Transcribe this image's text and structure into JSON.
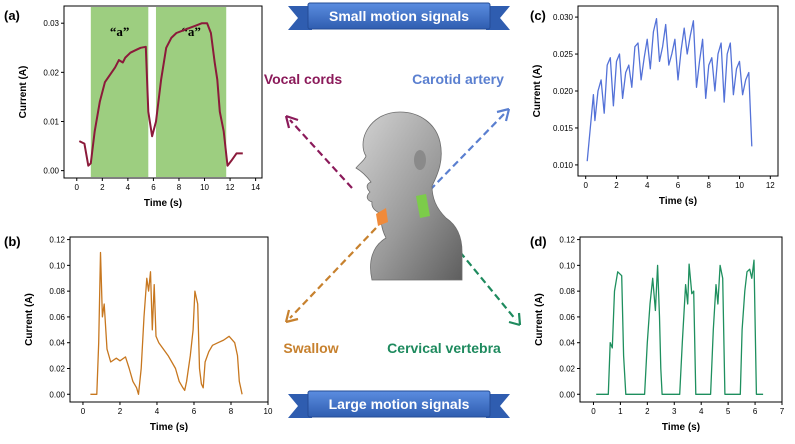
{
  "banners": {
    "top": "Small motion signals",
    "bottom": "Large motion signals",
    "color": "#3d6fc4"
  },
  "sites": [
    {
      "label": "Vocal cords",
      "color": "#8b1a5a"
    },
    {
      "label": "Carotid artery",
      "color": "#5a7fd0"
    },
    {
      "label": "Swallow",
      "color": "#c7812e"
    },
    {
      "label": "Cervical vertebra",
      "color": "#1e8a5e"
    }
  ],
  "head_icon": "human-head-side-view",
  "chart_data": [
    {
      "panel": "(a)",
      "type": "line",
      "color": "#8b1a3a",
      "xlabel": "Time (s)",
      "ylabel": "Current (A)",
      "xlim": [
        -1,
        14.5
      ],
      "ylim": [
        -0.0015,
        0.0335
      ],
      "xticks": [
        0,
        2,
        4,
        6,
        8,
        10,
        12,
        14
      ],
      "yticks": [
        0.0,
        0.01,
        0.02,
        0.03
      ],
      "ytick_labels": [
        "0.00",
        "0.01",
        "0.02",
        "0.03"
      ],
      "highlights": [
        {
          "x0": 1.1,
          "x1": 5.6,
          "label": "“a”",
          "color": "#8cc66a"
        },
        {
          "x0": 6.2,
          "x1": 11.7,
          "label": "“a”",
          "color": "#8cc66a"
        }
      ],
      "x": [
        0.2,
        0.6,
        0.9,
        1.1,
        1.4,
        1.8,
        2.2,
        2.6,
        3.0,
        3.3,
        3.6,
        3.8,
        4.2,
        4.6,
        5.0,
        5.4,
        5.6,
        5.9,
        6.2,
        6.6,
        7.0,
        7.4,
        7.8,
        8.3,
        8.8,
        9.3,
        9.8,
        10.2,
        10.5,
        10.8,
        11.0,
        11.2,
        11.5,
        11.8,
        12.1,
        12.5,
        13.0
      ],
      "y": [
        0.006,
        0.0055,
        0.001,
        0.0015,
        0.008,
        0.014,
        0.018,
        0.0195,
        0.021,
        0.0225,
        0.022,
        0.023,
        0.024,
        0.0245,
        0.025,
        0.0252,
        0.012,
        0.007,
        0.01,
        0.0185,
        0.025,
        0.027,
        0.028,
        0.0285,
        0.029,
        0.0295,
        0.03,
        0.03,
        0.028,
        0.022,
        0.0185,
        0.012,
        0.008,
        0.001,
        0.002,
        0.0035,
        0.0035
      ]
    },
    {
      "panel": "(b)",
      "type": "line",
      "color": "#c7771f",
      "xlabel": "Time (s)",
      "ylabel": "Current (A)",
      "xlim": [
        -0.7,
        10
      ],
      "ylim": [
        -0.006,
        0.122
      ],
      "xticks": [
        0,
        2,
        4,
        6,
        8,
        10
      ],
      "yticks": [
        0.0,
        0.02,
        0.04,
        0.06,
        0.08,
        0.1,
        0.12
      ],
      "ytick_labels": [
        "0.00",
        "0.02",
        "0.04",
        "0.06",
        "0.08",
        "0.10",
        "0.12"
      ],
      "x": [
        0.4,
        0.75,
        0.85,
        0.95,
        1.05,
        1.15,
        1.3,
        1.5,
        1.8,
        2.0,
        2.3,
        2.5,
        2.7,
        2.9,
        3.0,
        3.15,
        3.3,
        3.45,
        3.55,
        3.65,
        3.75,
        3.85,
        3.95,
        4.1,
        4.3,
        4.6,
        4.8,
        5.0,
        5.2,
        5.4,
        5.5,
        5.6,
        5.8,
        5.95,
        6.05,
        6.2,
        6.3,
        6.4,
        6.5,
        6.6,
        6.8,
        7.0,
        7.3,
        7.6,
        7.9,
        8.2,
        8.35,
        8.45,
        8.6
      ],
      "y": [
        0.0,
        0.0,
        0.04,
        0.11,
        0.06,
        0.07,
        0.035,
        0.025,
        0.028,
        0.026,
        0.029,
        0.02,
        0.01,
        0.005,
        0.0,
        0.02,
        0.06,
        0.09,
        0.08,
        0.095,
        0.05,
        0.085,
        0.045,
        0.04,
        0.036,
        0.03,
        0.025,
        0.02,
        0.01,
        0.005,
        0.003,
        0.01,
        0.03,
        0.05,
        0.08,
        0.07,
        0.02,
        0.008,
        0.005,
        0.025,
        0.033,
        0.038,
        0.04,
        0.042,
        0.045,
        0.04,
        0.03,
        0.01,
        0.0
      ]
    },
    {
      "panel": "(c)",
      "type": "line",
      "color": "#5472d8",
      "xlabel": "Time (s)",
      "ylabel": "Current (A)",
      "xlim": [
        -0.5,
        12.5
      ],
      "ylim": [
        0.0085,
        0.0315
      ],
      "xticks": [
        0,
        2,
        4,
        6,
        8,
        10,
        12
      ],
      "yticks": [
        0.01,
        0.015,
        0.02,
        0.025,
        0.03
      ],
      "ytick_labels": [
        "0.010",
        "0.015",
        "0.020",
        "0.025",
        "0.030"
      ],
      "x": [
        0.1,
        0.3,
        0.5,
        0.6,
        0.8,
        1.0,
        1.2,
        1.4,
        1.6,
        1.8,
        2.0,
        2.2,
        2.4,
        2.6,
        2.8,
        3.0,
        3.2,
        3.4,
        3.6,
        3.8,
        4.0,
        4.2,
        4.4,
        4.6,
        4.8,
        5.0,
        5.2,
        5.4,
        5.6,
        5.8,
        6.0,
        6.2,
        6.4,
        6.6,
        6.8,
        7.0,
        7.2,
        7.4,
        7.6,
        7.8,
        8.0,
        8.2,
        8.4,
        8.6,
        8.8,
        9.0,
        9.2,
        9.4,
        9.6,
        9.8,
        10.0,
        10.2,
        10.4,
        10.6,
        10.8
      ],
      "y": [
        0.0105,
        0.015,
        0.0195,
        0.016,
        0.02,
        0.0215,
        0.017,
        0.0235,
        0.0245,
        0.018,
        0.024,
        0.025,
        0.019,
        0.0225,
        0.0235,
        0.0205,
        0.026,
        0.0265,
        0.0215,
        0.0245,
        0.027,
        0.023,
        0.028,
        0.0298,
        0.024,
        0.026,
        0.029,
        0.0235,
        0.025,
        0.027,
        0.0215,
        0.0255,
        0.0285,
        0.025,
        0.0275,
        0.0295,
        0.0205,
        0.024,
        0.027,
        0.019,
        0.0235,
        0.0245,
        0.02,
        0.025,
        0.0265,
        0.0185,
        0.025,
        0.0265,
        0.0195,
        0.023,
        0.024,
        0.0195,
        0.0215,
        0.0225,
        0.0125
      ]
    },
    {
      "panel": "(d)",
      "type": "line",
      "color": "#1e8f5e",
      "xlabel": "Time (s)",
      "ylabel": "Current (A)",
      "xlim": [
        -0.5,
        7
      ],
      "ylim": [
        -0.006,
        0.122
      ],
      "xticks": [
        0,
        1,
        2,
        3,
        4,
        5,
        6,
        7
      ],
      "yticks": [
        0.0,
        0.02,
        0.04,
        0.06,
        0.08,
        0.1,
        0.12
      ],
      "ytick_labels": [
        "0.00",
        "0.02",
        "0.04",
        "0.06",
        "0.08",
        "0.10",
        "0.12"
      ],
      "x": [
        0.1,
        0.55,
        0.62,
        0.7,
        0.78,
        0.9,
        1.05,
        1.12,
        1.2,
        1.9,
        2.0,
        2.1,
        2.2,
        2.3,
        2.38,
        2.45,
        2.5,
        2.55,
        3.2,
        3.3,
        3.42,
        3.5,
        3.55,
        3.65,
        3.72,
        3.8,
        4.35,
        4.45,
        4.55,
        4.62,
        4.7,
        4.8,
        4.88,
        5.45,
        5.52,
        5.62,
        5.7,
        5.8,
        5.88,
        5.96,
        6.05,
        6.3
      ],
      "y": [
        0.0,
        0.0,
        0.04,
        0.036,
        0.08,
        0.095,
        0.092,
        0.03,
        0.0,
        0.0,
        0.04,
        0.07,
        0.09,
        0.065,
        0.1,
        0.06,
        0.02,
        0.0,
        0.0,
        0.04,
        0.085,
        0.07,
        0.101,
        0.078,
        0.08,
        0.0,
        0.0,
        0.05,
        0.085,
        0.07,
        0.1,
        0.09,
        0.0,
        0.0,
        0.05,
        0.08,
        0.095,
        0.097,
        0.09,
        0.104,
        0.0,
        0.0
      ]
    }
  ]
}
